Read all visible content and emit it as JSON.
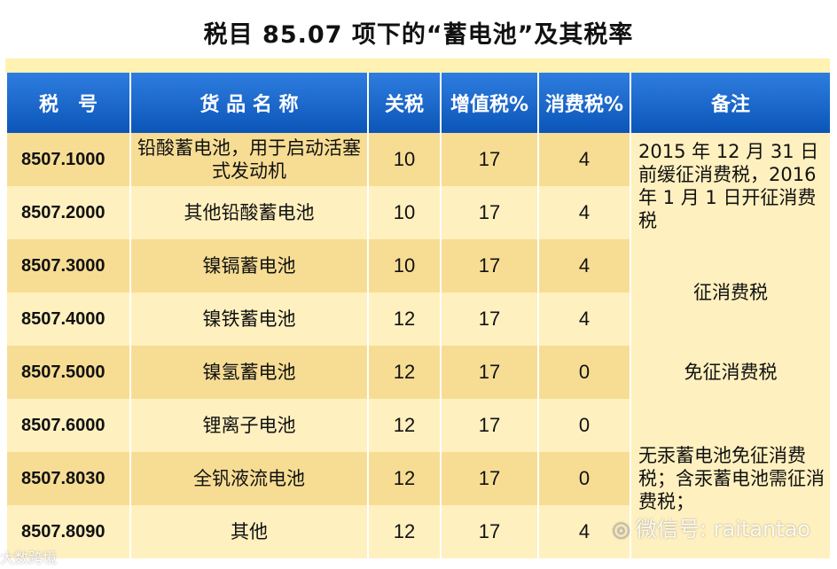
{
  "title": "税目 85.07 项下的“蓄电池”及其税率",
  "headers": [
    "税　号",
    "货 品 名 称",
    "关税",
    "增值税%",
    "消费税%",
    "备注"
  ],
  "rows": [
    {
      "code": "8507.1000",
      "name": "铅酸蓄电池，用于启动活塞式发动机",
      "tariff": "10",
      "vat": "17",
      "consumption": "4"
    },
    {
      "code": "8507.2000",
      "name": "其他铅酸蓄电池",
      "tariff": "10",
      "vat": "17",
      "consumption": "4"
    },
    {
      "code": "8507.3000",
      "name": "镍镉蓄电池",
      "tariff": "10",
      "vat": "17",
      "consumption": "4"
    },
    {
      "code": "8507.4000",
      "name": "镍铁蓄电池",
      "tariff": "12",
      "vat": "17",
      "consumption": "4"
    },
    {
      "code": "8507.5000",
      "name": "镍氢蓄电池",
      "tariff": "12",
      "vat": "17",
      "consumption": "0"
    },
    {
      "code": "8507.6000",
      "name": "锂离子电池",
      "tariff": "12",
      "vat": "17",
      "consumption": "0"
    },
    {
      "code": "8507.8030",
      "name": "全钒液流电池",
      "tariff": "12",
      "vat": "17",
      "consumption": "0"
    },
    {
      "code": "8507.8090",
      "name": "其他",
      "tariff": "12",
      "vat": "17",
      "consumption": "4"
    }
  ],
  "notes": {
    "note1": "2015 年 12 月 31 日前缓征消费税，2016 年 1 月 1 日开征消费税",
    "note2": "征消费税",
    "note3": "免征消费税",
    "note4": "无汞蓄电池免征消费税；含汞蓄电池需征消费税；"
  },
  "watermark": "微信号: raitantao",
  "watermark_brand": "大数跨境",
  "colors": {
    "header": "#1565c8",
    "row_dark": "#f7dd94",
    "row_light": "#fff0bf"
  }
}
